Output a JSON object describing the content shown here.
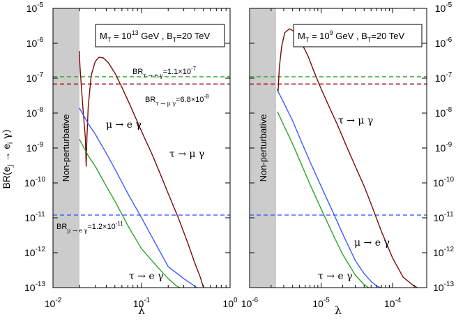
{
  "ylabel": "BR(e_j → e_i γ)",
  "ylabel_main": "BR(e",
  "ylabel_sub_j": "j",
  "ylabel_arrow": " → e",
  "ylabel_sub_i": "i",
  "ylabel_tail": " γ)",
  "colors": {
    "tau_mu": "#7a0a0a",
    "mu_e": "#3a5cff",
    "tau_e": "#2aa52a",
    "limit_tau_e": "#2aa52a",
    "limit_tau_mu": "#a00a0a",
    "limit_mu_e": "#3a5cff",
    "shade": "#cccccc"
  },
  "y_tick_labels": [
    {
      "base": "10",
      "exp": "-13"
    },
    {
      "base": "10",
      "exp": "-12"
    },
    {
      "base": "10",
      "exp": "-11"
    },
    {
      "base": "10",
      "exp": "-10"
    },
    {
      "base": "10",
      "exp": "-9"
    },
    {
      "base": "10",
      "exp": "-8"
    },
    {
      "base": "10",
      "exp": "-7"
    },
    {
      "base": "10",
      "exp": "-6"
    },
    {
      "base": "10",
      "exp": "-5"
    }
  ],
  "chart_data": [
    {
      "type": "line",
      "title": "M_T = 10^13 GeV , B_T=20 TeV",
      "title_parts": {
        "m": "M",
        "m_sub": "T",
        "m_val": " = 10",
        "m_exp": "13",
        "m_unit": " GeV , B",
        "b_sub": "T",
        "b_val": "=20 TeV"
      },
      "xlabel": "λ",
      "ylabel": "BR(e_j → e_i γ)",
      "xscale": "log",
      "yscale": "log",
      "xlim": [
        0.01,
        1.0
      ],
      "ylim": [
        1e-13,
        1e-05
      ],
      "x_tick_labels": [
        {
          "base": "10",
          "exp": "-2"
        },
        {
          "base": "10",
          "exp": "-1"
        },
        {
          "base": "10",
          "exp": "0"
        }
      ],
      "shaded_region": {
        "x": [
          0.01,
          0.02
        ],
        "label": "Non-perturbative"
      },
      "series": [
        {
          "name": "τ → μ γ",
          "color_key": "tau_mu",
          "x": [
            0.0198,
            0.0202,
            0.021,
            0.022,
            0.0232,
            0.0237,
            0.0242,
            0.025,
            0.027,
            0.03,
            0.033,
            0.037,
            0.042,
            0.05,
            0.06,
            0.075,
            0.1,
            0.13,
            0.16,
            0.2,
            0.26,
            0.33,
            0.4,
            0.46,
            0.5
          ],
          "y": [
            6e-07,
            2e-07,
            5e-08,
            1e-08,
            2e-09,
            3e-10,
            2e-09,
            1.5e-08,
            1.2e-07,
            3e-07,
            4e-07,
            3.8e-07,
            2.8e-07,
            1.4e-07,
            5.5e-08,
            1.6e-08,
            3e-09,
            7e-10,
            2e-10,
            5e-11,
            1e-11,
            2e-12,
            5e-13,
            2e-13,
            1e-13
          ]
        },
        {
          "name": "μ → e γ",
          "color_key": "mu_e",
          "x": [
            0.0198,
            0.025,
            0.03,
            0.04,
            0.05,
            0.07,
            0.1,
            0.15,
            0.2,
            0.3,
            0.4,
            0.42
          ],
          "y": [
            1.4e-08,
            5e-09,
            2.5e-09,
            7e-10,
            2.5e-10,
            5e-11,
            1e-11,
            1.5e-12,
            4e-13,
            1.8e-13,
            1.1e-13,
            1e-13
          ]
        },
        {
          "name": "τ → e γ",
          "color_key": "tau_e",
          "x": [
            0.0198,
            0.025,
            0.03,
            0.04,
            0.05,
            0.07,
            0.1,
            0.15,
            0.2,
            0.25,
            0.27
          ],
          "y": [
            1.8e-09,
            6e-10,
            3e-10,
            8e-11,
            3e-11,
            6e-12,
            1.3e-12,
            4e-13,
            1.8e-13,
            1.1e-13,
            1e-13
          ]
        }
      ],
      "limits": [
        {
          "name": "BR τ→eγ limit",
          "value": 1.1e-07,
          "color_key": "limit_tau_e"
        },
        {
          "name": "BR τ→μγ limit",
          "value": 6.8e-08,
          "color_key": "limit_tau_mu"
        },
        {
          "name": "BR μ→eγ limit",
          "value": 1.2e-11,
          "color_key": "limit_mu_e"
        }
      ],
      "annotations": {
        "limit_tau_e": {
          "br": "BR",
          "sub": "τ → e γ",
          "val": "=1.1×10",
          "exp": "-7"
        },
        "limit_tau_mu": {
          "br": "BR",
          "sub": "τ → μ γ",
          "val": "=6.8×10",
          "exp": "-8"
        },
        "limit_mu_e": {
          "br": "BR",
          "sub": "μ → e γ",
          "val": "=1.2×10",
          "exp": "-11"
        },
        "curve_mu_e": "μ → e γ",
        "curve_tau_mu": "τ → μ γ",
        "curve_tau_e": "τ → e γ"
      }
    },
    {
      "type": "line",
      "title": "M_T = 10^9 GeV , B_T=20 TeV",
      "title_parts": {
        "m": "M",
        "m_sub": "T",
        "m_val": " = 10",
        "m_exp": "9",
        "m_unit": " GeV , B",
        "b_sub": "T",
        "b_val": "=20 TeV"
      },
      "xlabel": "λ",
      "ylabel": "BR(e_j → e_i γ)",
      "xscale": "log",
      "yscale": "log",
      "xlim": [
        1e-06,
        0.0003
      ],
      "ylim": [
        1e-13,
        1e-05
      ],
      "x_tick_labels": [
        {
          "base": "10",
          "exp": "-6"
        },
        {
          "base": "10",
          "exp": "-5"
        },
        {
          "base": "10",
          "exp": "-4"
        }
      ],
      "shaded_region": {
        "x": [
          1e-06,
          2.4e-06
        ],
        "label": "Non-perturbative"
      },
      "series": [
        {
          "name": "τ → μ γ",
          "color_key": "tau_mu",
          "x": [
            2.45e-06,
            2.5e-06,
            2.6e-06,
            2.8e-06,
            3.1e-06,
            3.6e-06,
            4.2e-06,
            5e-06,
            6.5e-06,
            8e-06,
            1e-05,
            1.3e-05,
            1.7e-05,
            2.2e-05,
            3e-05,
            4e-05,
            5e-05,
            7e-05,
            0.0001,
            0.00014,
            0.00019,
            0.00022
          ],
          "y": [
            5e-08,
            4e-08,
            2e-07,
            8e-07,
            2e-06,
            2.6e-06,
            2.2e-06,
            1.3e-06,
            4.5e-07,
            1.5e-07,
            5e-08,
            1.5e-08,
            4.5e-09,
            1.3e-09,
            3e-10,
            8e-11,
            2.5e-11,
            4e-12,
            7e-13,
            2e-13,
            1.2e-13,
            1e-13
          ]
        },
        {
          "name": "μ → e γ",
          "color_key": "mu_e",
          "x": [
            2.45e-06,
            3e-06,
            4e-06,
            5e-06,
            7e-06,
            1e-05,
            1.5e-05,
            2e-05,
            3e-05,
            4e-05,
            5e-05,
            6e-05,
            6.8e-05
          ],
          "y": [
            4.5e-08,
            2e-08,
            6e-09,
            2e-09,
            4e-10,
            8e-11,
            1.3e-11,
            3.5e-12,
            6e-13,
            2.5e-13,
            1.5e-13,
            1.1e-13,
            1e-13
          ]
        },
        {
          "name": "τ → e γ",
          "color_key": "tau_e",
          "x": [
            2.45e-06,
            3e-06,
            4e-06,
            5e-06,
            7e-06,
            1e-05,
            1.5e-05,
            2e-05,
            3e-05,
            4e-05,
            4.6e-05
          ],
          "y": [
            1.1e-08,
            4.5e-09,
            1.3e-09,
            4.5e-10,
            9e-11,
            1.8e-11,
            3e-12,
            9e-13,
            2.3e-13,
            1.2e-13,
            1e-13
          ]
        }
      ],
      "limits": [
        {
          "name": "BR τ→eγ limit",
          "value": 1.1e-07,
          "color_key": "limit_tau_e"
        },
        {
          "name": "BR τ→μγ limit",
          "value": 6.8e-08,
          "color_key": "limit_tau_mu"
        },
        {
          "name": "BR μ→eγ limit",
          "value": 1.2e-11,
          "color_key": "limit_mu_e"
        }
      ],
      "annotations": {
        "curve_tau_mu": "τ → μ γ",
        "curve_mu_e": "μ → e γ",
        "curve_tau_e": "τ → e γ"
      }
    }
  ]
}
